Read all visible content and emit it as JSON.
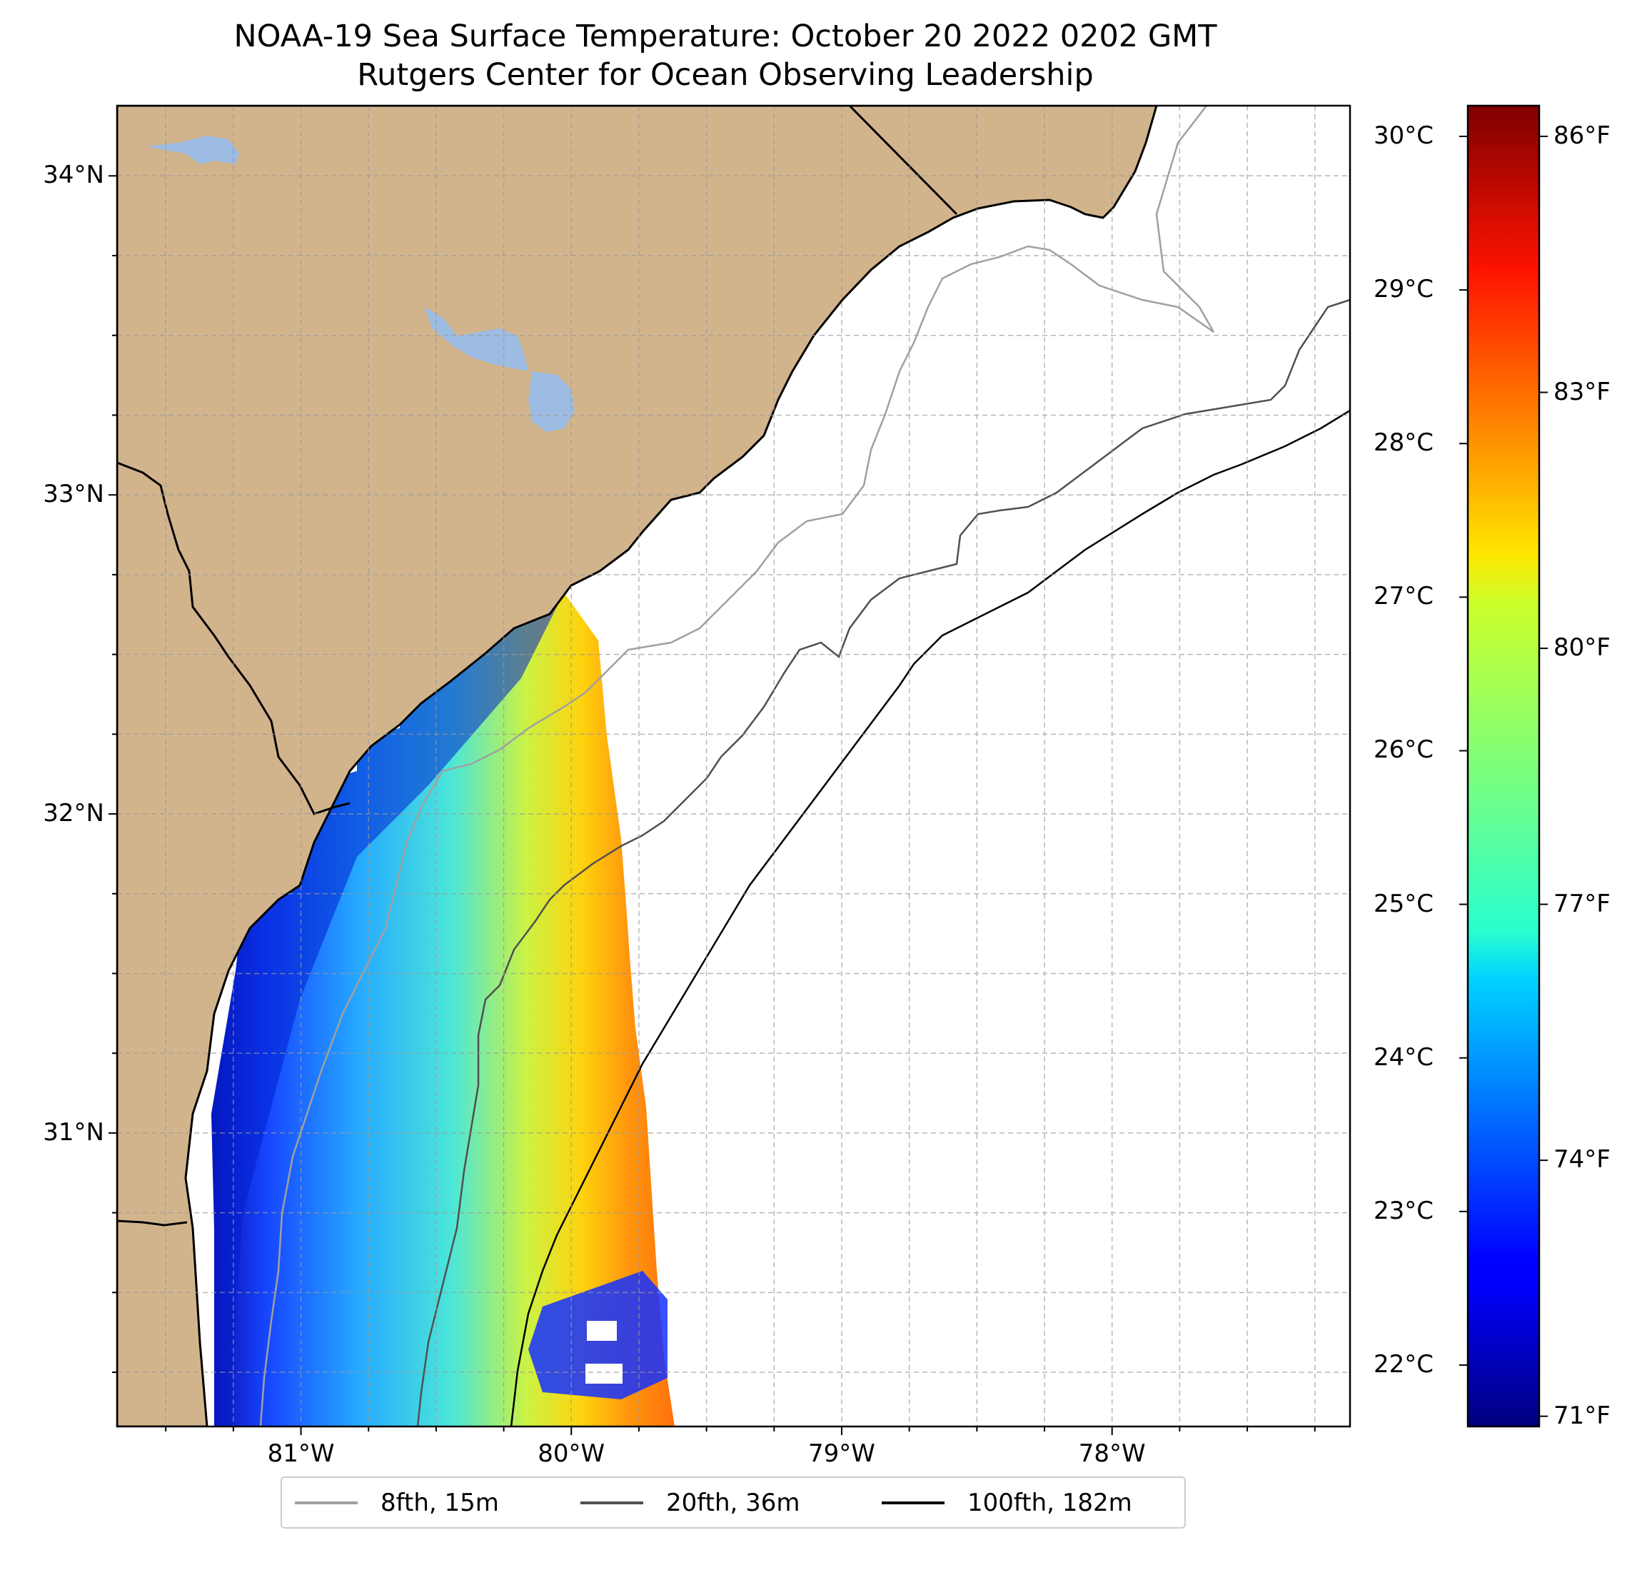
{
  "title": {
    "line1": "NOAA-19 Sea Surface Temperature: October 20 2022 0202 GMT",
    "line2": "Rutgers Center for Ocean Observing Leadership"
  },
  "map": {
    "lon_range": [
      -81.68,
      -77.12
    ],
    "lat_range": [
      30.08,
      34.22
    ],
    "lat_ticks": [
      {
        "value": 34,
        "label": "34°N"
      },
      {
        "value": 33,
        "label": "33°N"
      },
      {
        "value": 32,
        "label": "32°N"
      },
      {
        "value": 31,
        "label": "31°N"
      }
    ],
    "lon_ticks": [
      {
        "value": -81,
        "label": "81°W"
      },
      {
        "value": -80,
        "label": "80°W"
      },
      {
        "value": -79,
        "label": "79°W"
      },
      {
        "value": -78,
        "label": "78°W"
      }
    ],
    "gridlines": true,
    "colors": {
      "land": "#d2b48c",
      "lakes": "#9cbce3",
      "ocean": "#ffffff",
      "coastline": "#000000"
    }
  },
  "colorbar": {
    "colormap": "jet",
    "celsius_range": [
      21.6,
      30.2
    ],
    "celsius_ticks": [
      {
        "value": 30,
        "label": "30°C"
      },
      {
        "value": 29,
        "label": "29°C"
      },
      {
        "value": 28,
        "label": "28°C"
      },
      {
        "value": 27,
        "label": "27°C"
      },
      {
        "value": 26,
        "label": "26°C"
      },
      {
        "value": 25,
        "label": "25°C"
      },
      {
        "value": 24,
        "label": "24°C"
      },
      {
        "value": 23,
        "label": "23°C"
      },
      {
        "value": 22,
        "label": "22°C"
      }
    ],
    "fahrenheit_ticks": [
      {
        "value": 86,
        "label": "86°F"
      },
      {
        "value": 83,
        "label": "83°F"
      },
      {
        "value": 80,
        "label": "80°F"
      },
      {
        "value": 77,
        "label": "77°F"
      },
      {
        "value": 74,
        "label": "74°F"
      },
      {
        "value": 71,
        "label": "71°F"
      }
    ]
  },
  "legend": {
    "location": "bottom-center",
    "entries": [
      {
        "label": "8fth, 15m",
        "color": "#a0a0a0"
      },
      {
        "label": "20fth, 36m",
        "color": "#505050"
      },
      {
        "label": "100fth, 182m",
        "color": "#000000"
      }
    ]
  }
}
